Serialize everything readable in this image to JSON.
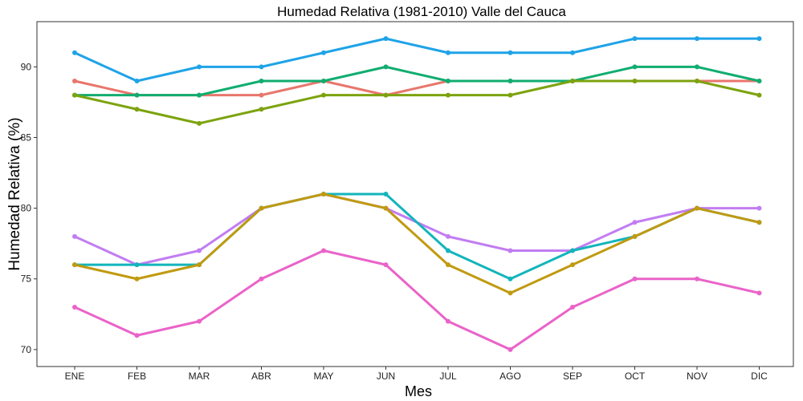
{
  "chart_data": {
    "type": "line",
    "title": "Humedad Relativa (1981-2010)  Valle del Cauca",
    "xlabel": "Mes",
    "ylabel": "Humedad Relativa  (%)",
    "categories": [
      "ENE",
      "FEB",
      "MAR",
      "ABR",
      "MAY",
      "JUN",
      "JUL",
      "AGO",
      "SEP",
      "OCT",
      "NOV",
      "DIC"
    ],
    "yticks": [
      70,
      75,
      80,
      85,
      90
    ],
    "ylim": [
      68.8,
      93.2
    ],
    "grid": false,
    "series": [
      {
        "color": "#1fa3e8",
        "values": [
          91,
          89,
          90,
          90,
          91,
          92,
          91,
          91,
          91,
          92,
          92,
          92
        ]
      },
      {
        "color": "#e8766c",
        "values": [
          89,
          88,
          88,
          88,
          89,
          88,
          89,
          89,
          89,
          89,
          89,
          89
        ]
      },
      {
        "color": "#10ad70",
        "values": [
          88,
          88,
          88,
          89,
          89,
          90,
          89,
          89,
          89,
          90,
          90,
          89
        ]
      },
      {
        "color": "#7ca30f",
        "values": [
          88,
          87,
          86,
          87,
          88,
          88,
          88,
          88,
          89,
          89,
          89,
          88
        ]
      },
      {
        "color": "#c27df2",
        "values": [
          78,
          76,
          77,
          80,
          81,
          80,
          78,
          77,
          77,
          79,
          80,
          80
        ]
      },
      {
        "color": "#12b5bc",
        "values": [
          76,
          76,
          76,
          80,
          81,
          81,
          77,
          75,
          77,
          78,
          80,
          79
        ]
      },
      {
        "color": "#c09a10",
        "values": [
          76,
          75,
          76,
          80,
          81,
          80,
          76,
          74,
          76,
          78,
          80,
          79
        ]
      },
      {
        "color": "#ea63c9",
        "values": [
          73,
          71,
          72,
          75,
          77,
          76,
          72,
          70,
          73,
          75,
          75,
          74
        ]
      }
    ]
  }
}
